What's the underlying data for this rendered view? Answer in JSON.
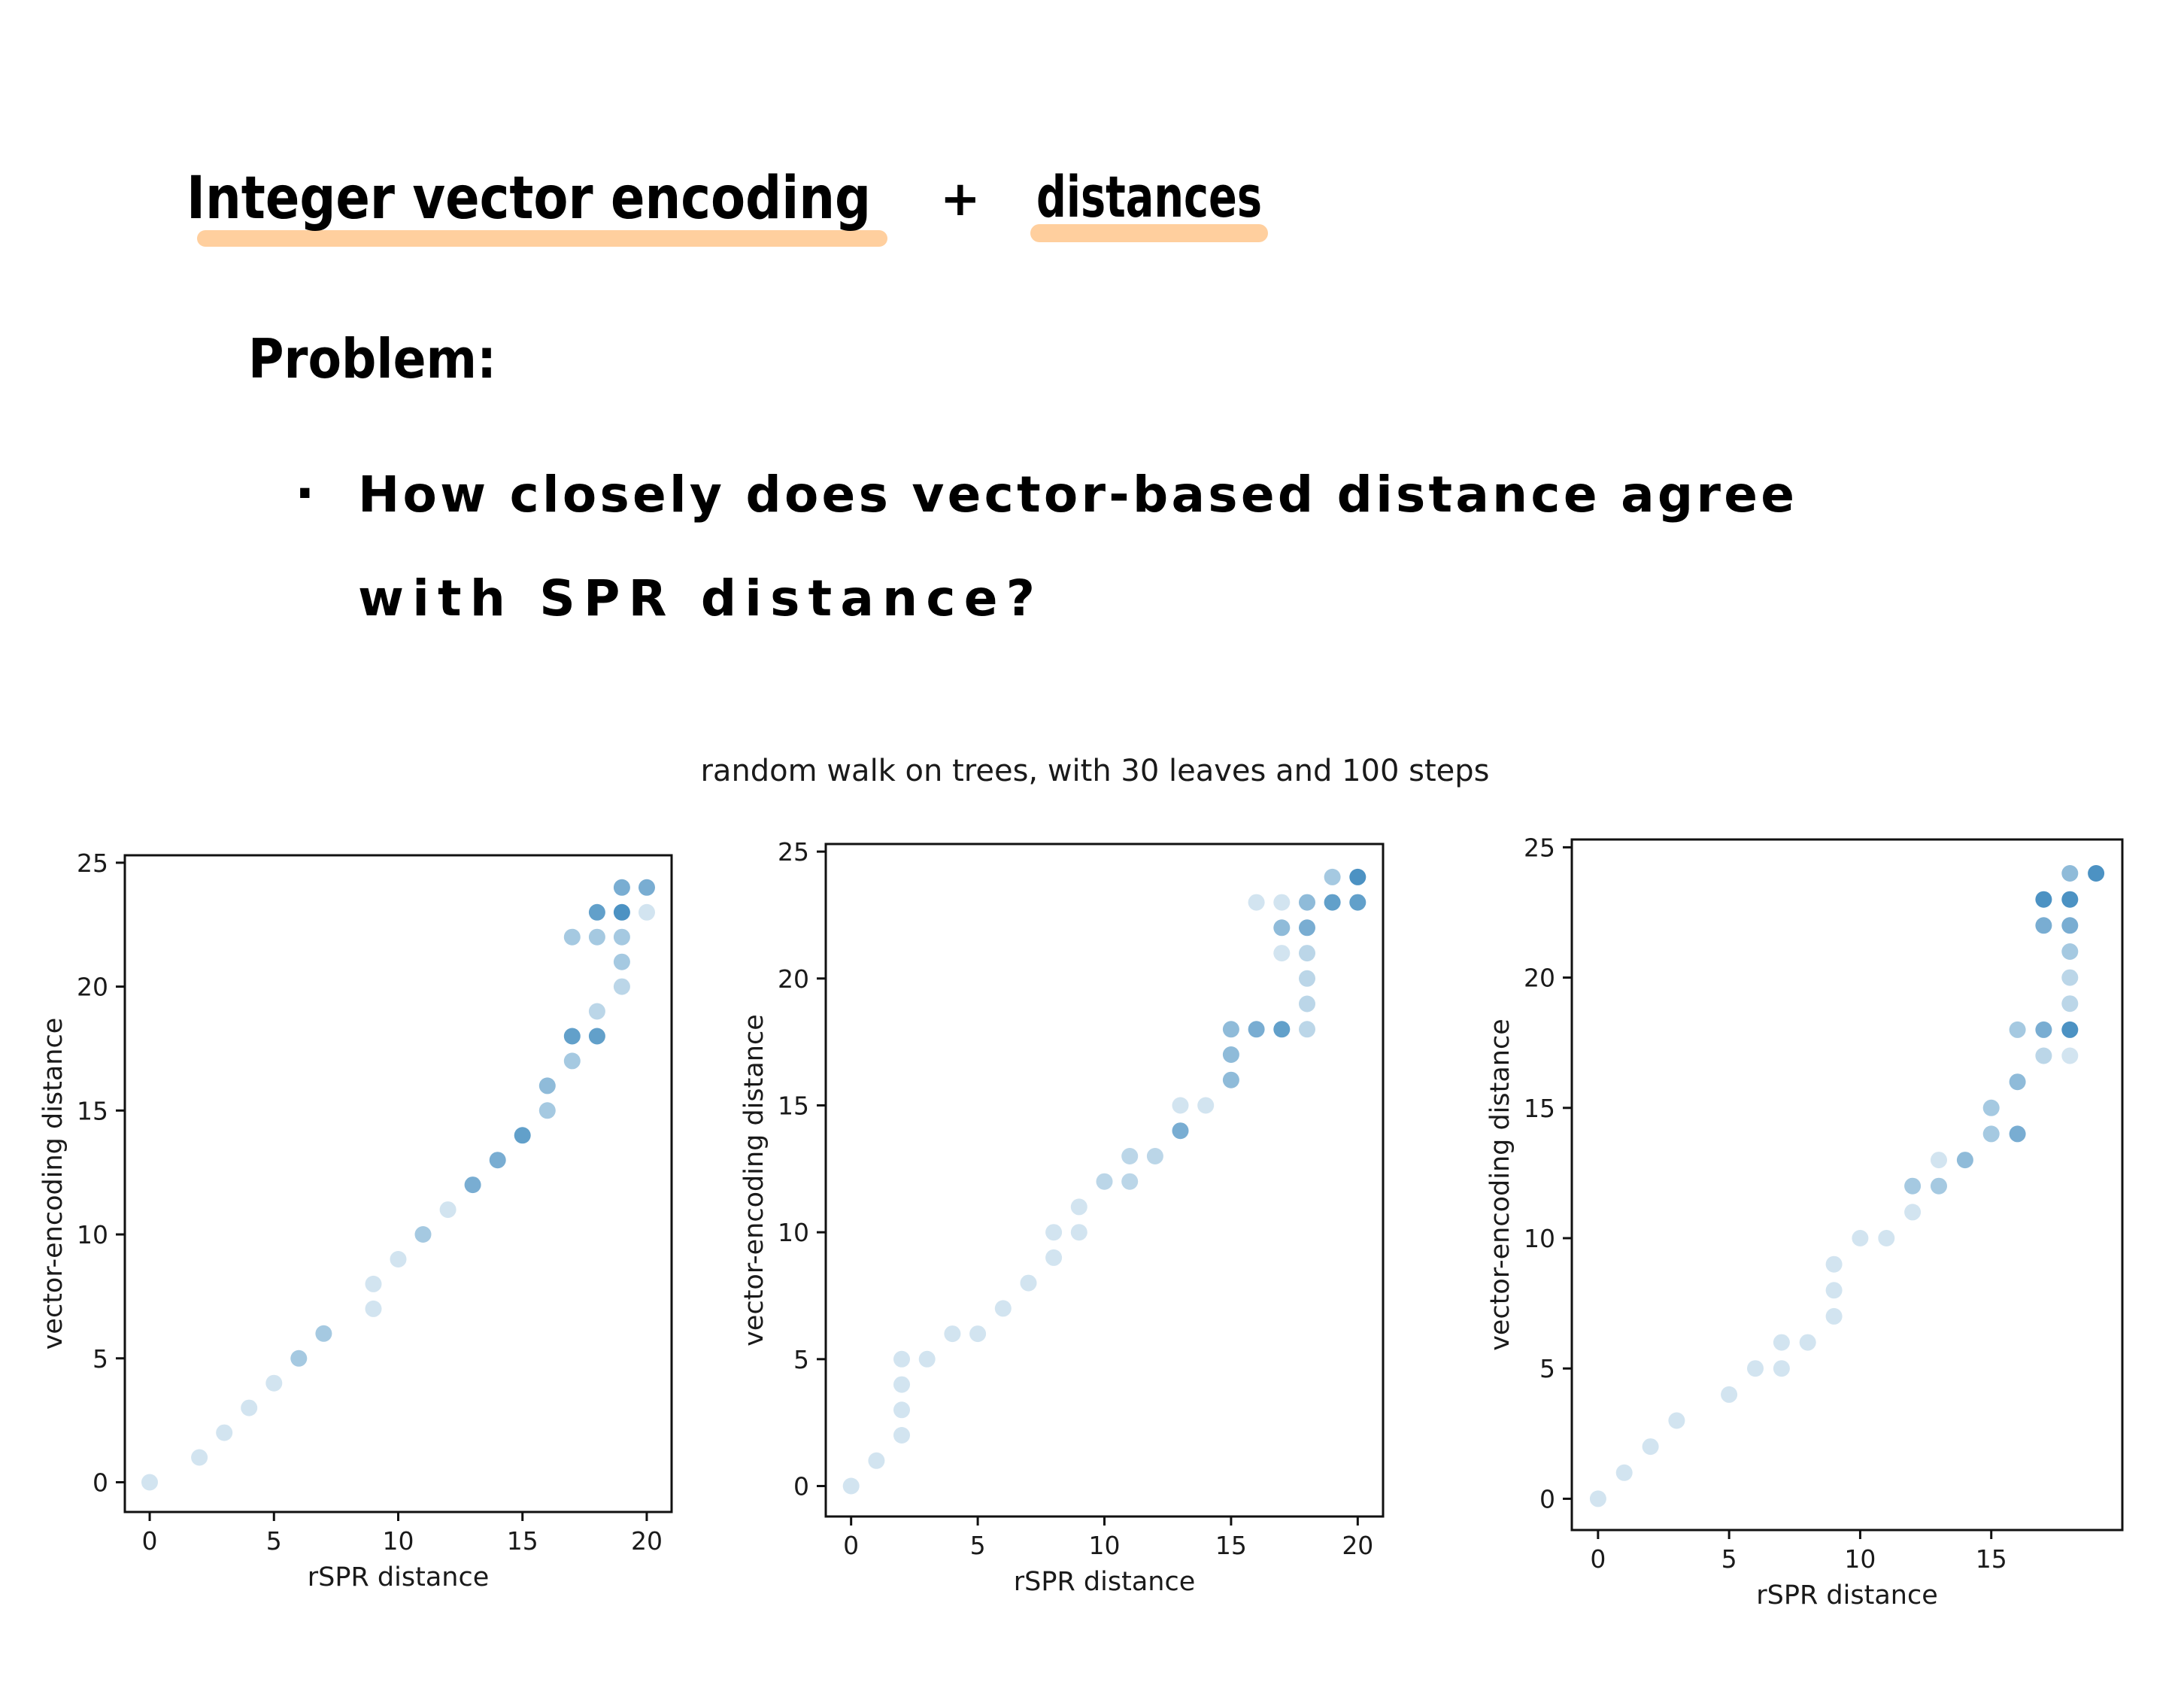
{
  "notes": {
    "heading_left": "Integer vector encoding",
    "heading_amp": "+",
    "heading_right": "distances",
    "problem_label": "Problem:",
    "bullet": "·",
    "question_line1": "How closely does vector-based distance agree",
    "question_line2": "with SPR distance?",
    "highlight_color": "#FFCF9E"
  },
  "chart_data": {
    "suptitle": "random walk on trees, with 30 leaves and 100 steps",
    "marker_color": "#1F77B4",
    "panels": [
      {
        "type": "scatter",
        "xlabel": "rSPR distance",
        "ylabel": "vector-encoding distance",
        "xlim": [
          -1,
          21
        ],
        "ylim": [
          -1.2,
          25.3
        ],
        "xticks": [
          0,
          5,
          10,
          15,
          20
        ],
        "yticks": [
          0,
          5,
          10,
          15,
          20,
          25
        ],
        "points": [
          {
            "x": 0,
            "y": 0,
            "a": 0.2
          },
          {
            "x": 2,
            "y": 1,
            "a": 0.2
          },
          {
            "x": 3,
            "y": 2,
            "a": 0.2
          },
          {
            "x": 4,
            "y": 3,
            "a": 0.2
          },
          {
            "x": 5,
            "y": 4,
            "a": 0.2
          },
          {
            "x": 6,
            "y": 5,
            "a": 0.4
          },
          {
            "x": 7,
            "y": 6,
            "a": 0.4
          },
          {
            "x": 9,
            "y": 7,
            "a": 0.2
          },
          {
            "x": 9,
            "y": 8,
            "a": 0.2
          },
          {
            "x": 10,
            "y": 9,
            "a": 0.2
          },
          {
            "x": 11,
            "y": 10,
            "a": 0.4
          },
          {
            "x": 12,
            "y": 11,
            "a": 0.2
          },
          {
            "x": 13,
            "y": 12,
            "a": 0.6
          },
          {
            "x": 14,
            "y": 13,
            "a": 0.6
          },
          {
            "x": 15,
            "y": 14,
            "a": 0.7
          },
          {
            "x": 16,
            "y": 15,
            "a": 0.4
          },
          {
            "x": 16,
            "y": 16,
            "a": 0.5
          },
          {
            "x": 17,
            "y": 17,
            "a": 0.4
          },
          {
            "x": 17,
            "y": 18,
            "a": 0.7
          },
          {
            "x": 18,
            "y": 18,
            "a": 0.7
          },
          {
            "x": 18,
            "y": 19,
            "a": 0.3
          },
          {
            "x": 19,
            "y": 20,
            "a": 0.3
          },
          {
            "x": 19,
            "y": 21,
            "a": 0.4
          },
          {
            "x": 17,
            "y": 22,
            "a": 0.4
          },
          {
            "x": 18,
            "y": 22,
            "a": 0.4
          },
          {
            "x": 19,
            "y": 22,
            "a": 0.4
          },
          {
            "x": 18,
            "y": 23,
            "a": 0.7
          },
          {
            "x": 19,
            "y": 23,
            "a": 0.8
          },
          {
            "x": 20,
            "y": 23,
            "a": 0.2
          },
          {
            "x": 19,
            "y": 24,
            "a": 0.6
          },
          {
            "x": 20,
            "y": 24,
            "a": 0.6
          }
        ]
      },
      {
        "type": "scatter",
        "xlabel": "rSPR distance",
        "ylabel": "vector-encoding distance",
        "xlim": [
          -1,
          21
        ],
        "ylim": [
          -1.2,
          25.3
        ],
        "xticks": [
          0,
          5,
          10,
          15,
          20
        ],
        "yticks": [
          0,
          5,
          10,
          15,
          20,
          25
        ],
        "points": [
          {
            "x": 0,
            "y": 0,
            "a": 0.2
          },
          {
            "x": 1,
            "y": 1,
            "a": 0.2
          },
          {
            "x": 2,
            "y": 2,
            "a": 0.2
          },
          {
            "x": 2,
            "y": 3,
            "a": 0.2
          },
          {
            "x": 2,
            "y": 4,
            "a": 0.2
          },
          {
            "x": 2,
            "y": 5,
            "a": 0.2
          },
          {
            "x": 3,
            "y": 5,
            "a": 0.2
          },
          {
            "x": 4,
            "y": 6,
            "a": 0.2
          },
          {
            "x": 5,
            "y": 6,
            "a": 0.2
          },
          {
            "x": 6,
            "y": 7,
            "a": 0.2
          },
          {
            "x": 7,
            "y": 8,
            "a": 0.2
          },
          {
            "x": 8,
            "y": 9,
            "a": 0.2
          },
          {
            "x": 8,
            "y": 10,
            "a": 0.2
          },
          {
            "x": 9,
            "y": 10,
            "a": 0.2
          },
          {
            "x": 9,
            "y": 11,
            "a": 0.2
          },
          {
            "x": 10,
            "y": 12,
            "a": 0.3
          },
          {
            "x": 11,
            "y": 12,
            "a": 0.3
          },
          {
            "x": 11,
            "y": 13,
            "a": 0.3
          },
          {
            "x": 12,
            "y": 13,
            "a": 0.3
          },
          {
            "x": 13,
            "y": 14,
            "a": 0.6
          },
          {
            "x": 13,
            "y": 15,
            "a": 0.2
          },
          {
            "x": 14,
            "y": 15,
            "a": 0.2
          },
          {
            "x": 15,
            "y": 16,
            "a": 0.5
          },
          {
            "x": 15,
            "y": 17,
            "a": 0.5
          },
          {
            "x": 15,
            "y": 18,
            "a": 0.5
          },
          {
            "x": 16,
            "y": 18,
            "a": 0.6
          },
          {
            "x": 17,
            "y": 18,
            "a": 0.7
          },
          {
            "x": 18,
            "y": 18,
            "a": 0.3
          },
          {
            "x": 18,
            "y": 19,
            "a": 0.3
          },
          {
            "x": 18,
            "y": 20,
            "a": 0.3
          },
          {
            "x": 17,
            "y": 21,
            "a": 0.2
          },
          {
            "x": 18,
            "y": 21,
            "a": 0.3
          },
          {
            "x": 17,
            "y": 22,
            "a": 0.5
          },
          {
            "x": 18,
            "y": 22,
            "a": 0.6
          },
          {
            "x": 16,
            "y": 23,
            "a": 0.2
          },
          {
            "x": 17,
            "y": 23,
            "a": 0.2
          },
          {
            "x": 18,
            "y": 23,
            "a": 0.5
          },
          {
            "x": 19,
            "y": 23,
            "a": 0.7
          },
          {
            "x": 20,
            "y": 23,
            "a": 0.7
          },
          {
            "x": 19,
            "y": 24,
            "a": 0.4
          },
          {
            "x": 20,
            "y": 24,
            "a": 0.8
          }
        ]
      },
      {
        "type": "scatter",
        "xlabel": "rSPR distance",
        "ylabel": "vector-encoding distance",
        "xlim": [
          -1,
          20
        ],
        "ylim": [
          -1.2,
          25.3
        ],
        "xticks": [
          0,
          5,
          10,
          15
        ],
        "yticks": [
          0,
          5,
          10,
          15,
          20,
          25
        ],
        "points": [
          {
            "x": 0,
            "y": 0,
            "a": 0.2
          },
          {
            "x": 1,
            "y": 1,
            "a": 0.2
          },
          {
            "x": 2,
            "y": 2,
            "a": 0.2
          },
          {
            "x": 3,
            "y": 3,
            "a": 0.2
          },
          {
            "x": 5,
            "y": 4,
            "a": 0.2
          },
          {
            "x": 6,
            "y": 5,
            "a": 0.2
          },
          {
            "x": 7,
            "y": 5,
            "a": 0.2
          },
          {
            "x": 7,
            "y": 6,
            "a": 0.2
          },
          {
            "x": 8,
            "y": 6,
            "a": 0.2
          },
          {
            "x": 9,
            "y": 7,
            "a": 0.2
          },
          {
            "x": 9,
            "y": 8,
            "a": 0.2
          },
          {
            "x": 9,
            "y": 9,
            "a": 0.2
          },
          {
            "x": 10,
            "y": 10,
            "a": 0.2
          },
          {
            "x": 11,
            "y": 10,
            "a": 0.2
          },
          {
            "x": 12,
            "y": 11,
            "a": 0.2
          },
          {
            "x": 12,
            "y": 12,
            "a": 0.4
          },
          {
            "x": 13,
            "y": 12,
            "a": 0.4
          },
          {
            "x": 13,
            "y": 13,
            "a": 0.2
          },
          {
            "x": 14,
            "y": 13,
            "a": 0.5
          },
          {
            "x": 15,
            "y": 14,
            "a": 0.4
          },
          {
            "x": 16,
            "y": 14,
            "a": 0.6
          },
          {
            "x": 15,
            "y": 15,
            "a": 0.4
          },
          {
            "x": 16,
            "y": 16,
            "a": 0.5
          },
          {
            "x": 17,
            "y": 17,
            "a": 0.3
          },
          {
            "x": 18,
            "y": 17,
            "a": 0.2
          },
          {
            "x": 16,
            "y": 18,
            "a": 0.4
          },
          {
            "x": 17,
            "y": 18,
            "a": 0.6
          },
          {
            "x": 18,
            "y": 18,
            "a": 0.8
          },
          {
            "x": 18,
            "y": 19,
            "a": 0.3
          },
          {
            "x": 18,
            "y": 20,
            "a": 0.3
          },
          {
            "x": 18,
            "y": 21,
            "a": 0.4
          },
          {
            "x": 17,
            "y": 22,
            "a": 0.6
          },
          {
            "x": 18,
            "y": 22,
            "a": 0.6
          },
          {
            "x": 17,
            "y": 23,
            "a": 0.8
          },
          {
            "x": 18,
            "y": 23,
            "a": 0.8
          },
          {
            "x": 18,
            "y": 24,
            "a": 0.5
          },
          {
            "x": 19,
            "y": 24,
            "a": 0.8
          }
        ]
      }
    ]
  }
}
